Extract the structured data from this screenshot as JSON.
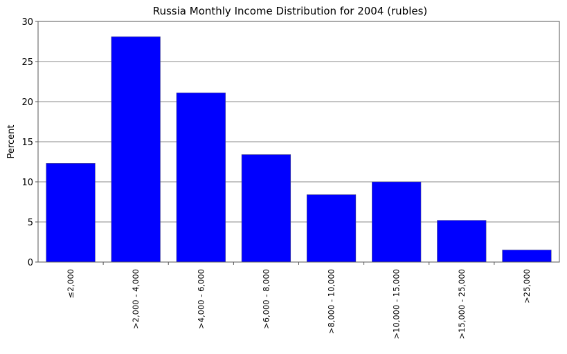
{
  "chart_data": {
    "type": "bar",
    "title": "Russia Monthly Income Distribution for 2004 (rubles)",
    "xlabel": "",
    "ylabel": "Percent",
    "categories": [
      "≤2,000",
      ">2,000 - 4,000",
      ">4,000 - 6,000",
      ">6,000 - 8,000",
      ">8,000 - 10,000",
      ">10,000 - 15,000",
      ">15,000 - 25,000",
      ">25,000"
    ],
    "values": [
      12.3,
      28.1,
      21.1,
      13.4,
      8.4,
      10.0,
      5.2,
      1.5
    ],
    "ylim": [
      0,
      30
    ],
    "yticks": [
      0,
      5,
      10,
      15,
      20,
      25,
      30
    ],
    "grid": true,
    "bar_color": "#0000ff"
  }
}
